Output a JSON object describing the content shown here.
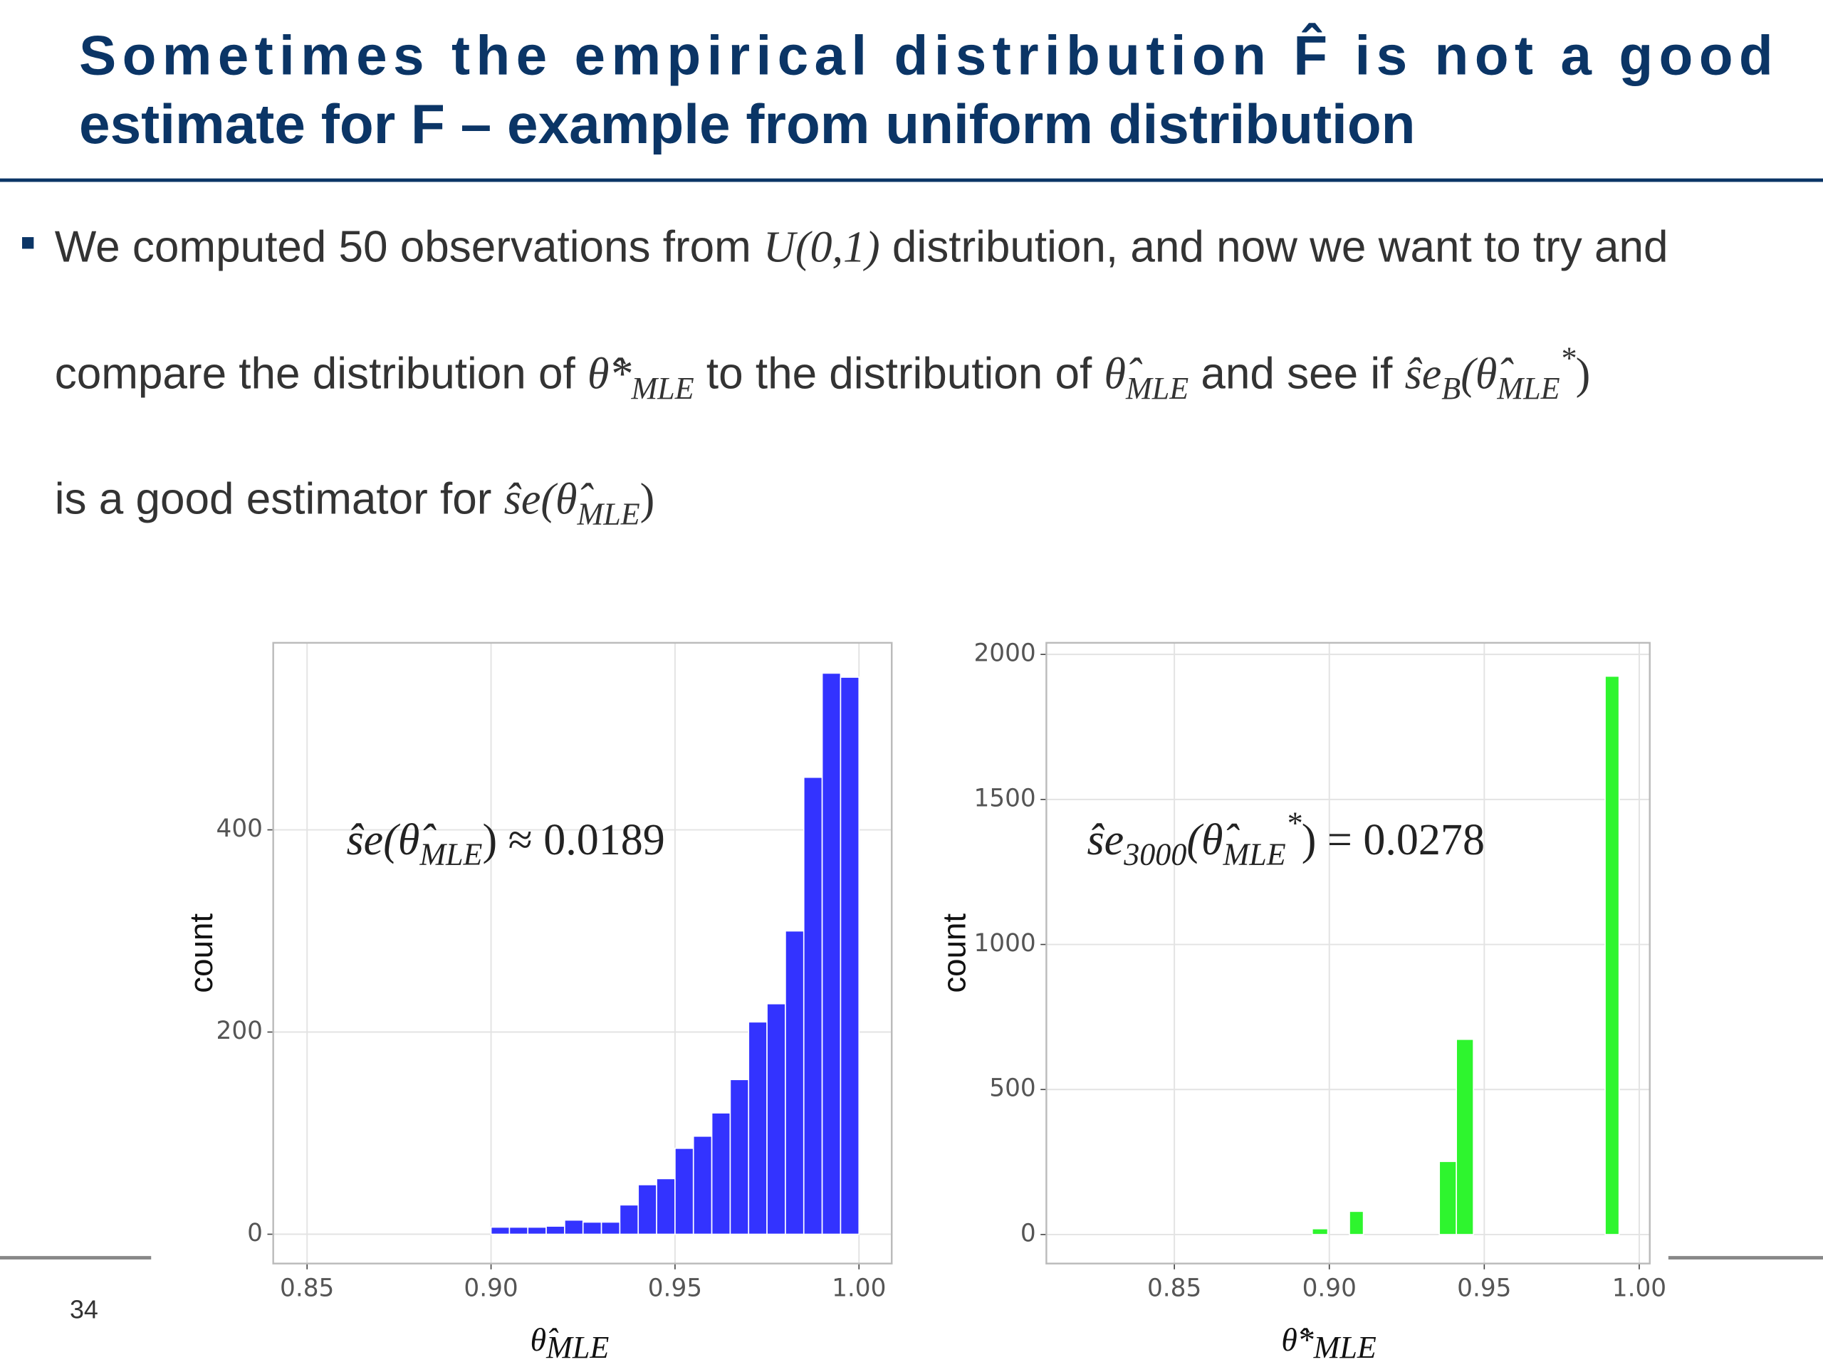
{
  "title": [
    "Sometimes the empirical distribution F̂ is not a good",
    "estimate for F – example from uniform distribution"
  ],
  "bullet": {
    "lines": [
      [
        "We computed 50 observations from ",
        "U(0,1)",
        " distribution, and now we want to try and"
      ],
      [
        "compare the distribution of ",
        "θ̂*",
        "MLE",
        " to the distribution of ",
        "θ̂",
        "MLE",
        " and see if ",
        "ŝe",
        "B",
        "(θ̂",
        "MLE",
        "*",
        ")"
      ],
      [
        "is a good estimator for ",
        "ŝe",
        "(θ̂",
        "MLE",
        ")"
      ]
    ]
  },
  "page_number": "34",
  "chart_data": [
    {
      "type": "histogram",
      "annotation": [
        "ŝe(θ̂",
        "MLE",
        ") ≈ 0.0189"
      ],
      "x_label": [
        "θ̂",
        "MLE"
      ],
      "y_label": "count",
      "color": "#3333ff",
      "bins": [
        0.9,
        0.905,
        0.91,
        0.915,
        0.92,
        0.925,
        0.93,
        0.935,
        0.94,
        0.945,
        0.95,
        0.955,
        0.96,
        0.965,
        0.97,
        0.975,
        0.98,
        0.985,
        0.99,
        0.995,
        1.0
      ],
      "values": [
        7,
        7,
        7,
        8,
        14,
        12,
        12,
        29,
        49,
        55,
        85,
        97,
        120,
        153,
        210,
        228,
        300,
        452,
        555,
        551
      ],
      "xlim": [
        0.8408,
        1.0089
      ],
      "ylim": [
        -29,
        585
      ],
      "xticks": [
        0.85,
        {
          "value": 0.9,
          "label": "0.90"
        },
        0.95,
        {
          "value": 1.0,
          "label": "1.00"
        }
      ],
      "yticks": [
        0,
        200,
        400
      ],
      "grid": true
    },
    {
      "type": "histogram",
      "annotation": [
        "ŝe",
        "3000",
        "(θ̂",
        "MLE",
        "*",
        ") = 0.0278"
      ],
      "x_label": [
        "θ̂*",
        "MLE"
      ],
      "y_label": "count",
      "color": "#2ef52e",
      "bins": [
        0.8945,
        0.8995,
        0.9065,
        0.911,
        0.9355,
        0.941,
        0.9465,
        0.989,
        0.9935
      ],
      "values": [
        20,
        0,
        80,
        0,
        252,
        673,
        0,
        1925
      ],
      "xlim": [
        0.8087,
        1.0034
      ],
      "ylim": [
        -100,
        2040
      ],
      "xticks": [
        0.85,
        {
          "value": 0.9,
          "label": "0.90"
        },
        0.95,
        {
          "value": 1.0,
          "label": "1.00"
        }
      ],
      "yticks": [
        0,
        500,
        1000,
        1500,
        2000
      ],
      "grid": true
    }
  ]
}
